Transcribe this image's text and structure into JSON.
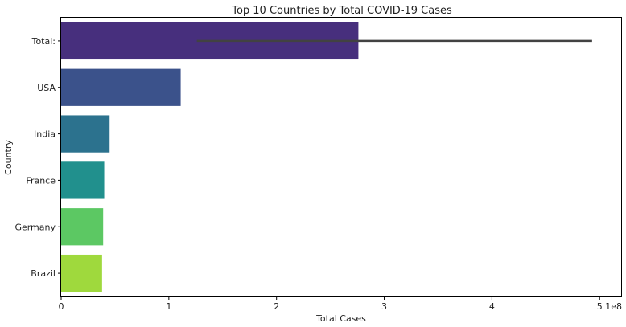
{
  "chart_data": {
    "type": "bar",
    "orientation": "horizontal",
    "title": "Top 10 Countries by Total COVID-19 Cases",
    "xlabel": "Total Cases",
    "ylabel": "Country",
    "x_offset_label": "1e8",
    "xlim": [
      0,
      5.2
    ],
    "x_ticks": [
      0,
      1,
      2,
      3,
      4,
      5
    ],
    "categories": [
      "Total:",
      "USA",
      "India",
      "France",
      "Germany",
      "Brazil"
    ],
    "values": [
      2.76,
      1.11,
      0.45,
      0.4,
      0.39,
      0.38
    ],
    "error_bars": [
      {
        "category": "Total:",
        "low": 1.26,
        "high": 4.93
      }
    ],
    "colors": [
      "#472f7d",
      "#3b528b",
      "#2c728e",
      "#21908d",
      "#5cc863",
      "#9fd93d"
    ],
    "grid": false,
    "legend": "none"
  }
}
